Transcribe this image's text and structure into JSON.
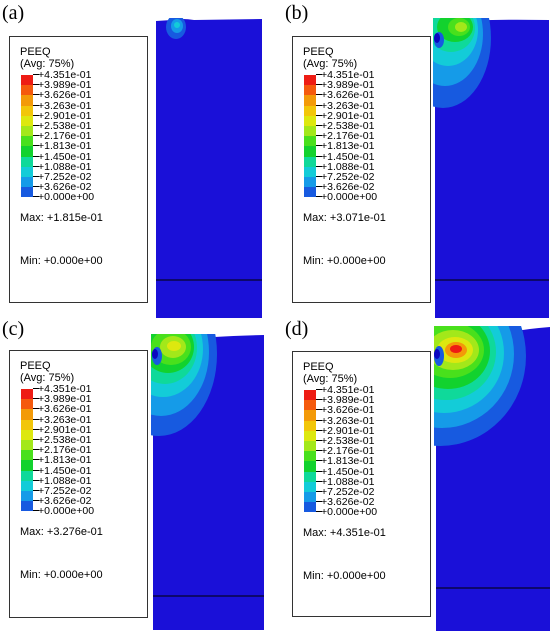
{
  "legend": {
    "title": "PEEQ",
    "subtitle": "(Avg: 75%)",
    "ticks": [
      "+4.351e-01",
      "+3.989e-01",
      "+3.626e-01",
      "+3.263e-01",
      "+2.901e-01",
      "+2.538e-01",
      "+2.176e-01",
      "+1.813e-01",
      "+1.450e-01",
      "+1.088e-01",
      "+7.252e-02",
      "+3.626e-02",
      "+0.000e+00"
    ],
    "colors": [
      "#ee1c14",
      "#f55a0d",
      "#f39a08",
      "#f2c609",
      "#dde80f",
      "#a3e81a",
      "#49e01c",
      "#12d22e",
      "#0fd99a",
      "#13ccd8",
      "#159be8",
      "#175ae0",
      "#1517c8"
    ]
  },
  "panels": [
    {
      "label": "(a)",
      "max": "Max: +1.815e-01",
      "min": "Min: +0.000e+00"
    },
    {
      "label": "(b)",
      "max": "Max: +3.071e-01",
      "min": "Min: +0.000e+00"
    },
    {
      "label": "(c)",
      "max": "Max: +3.276e-01",
      "min": "Min: +0.000e+00"
    },
    {
      "label": "(d)",
      "max": "Max: +4.351e-01",
      "min": "Min: +0.000e+00"
    }
  ],
  "colors": {
    "background_blue": "#1a10d8",
    "dark_blue": "#0b06c0"
  }
}
